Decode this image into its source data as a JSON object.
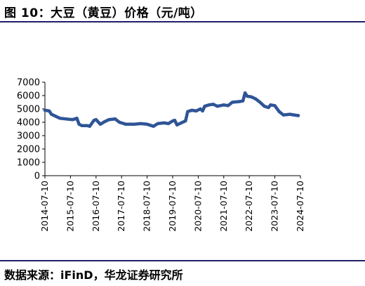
{
  "title": "图 10：大豆（黄豆）价格（元/吨）",
  "source": "数据来源：iFinD，华龙证券研究所",
  "colors": {
    "line": "#2f5597",
    "rule": "#1f1f6b",
    "axis": "#000000"
  },
  "chart_data": {
    "type": "line",
    "title": "",
    "xlabel": "",
    "ylabel": "",
    "ylim": [
      0,
      7000
    ],
    "yticks": [
      0,
      1000,
      2000,
      3000,
      4000,
      5000,
      6000,
      7000
    ],
    "xlim": [
      "2014-07-10",
      "2024-07-10"
    ],
    "xticks": [
      "2014-07-10",
      "2015-07-10",
      "2016-07-10",
      "2017-07-10",
      "2018-07-10",
      "2019-07-10",
      "2020-07-10",
      "2021-07-10",
      "2022-07-10",
      "2023-07-10",
      "2024-07-10"
    ],
    "grid": false,
    "legend": "none",
    "series": [
      {
        "points": [
          [
            "2014-07-10",
            4900
          ],
          [
            "2014-09-10",
            4850
          ],
          [
            "2014-10-10",
            4600
          ],
          [
            "2014-12-10",
            4450
          ],
          [
            "2015-02-10",
            4300
          ],
          [
            "2015-05-10",
            4250
          ],
          [
            "2015-08-10",
            4200
          ],
          [
            "2015-10-10",
            4300
          ],
          [
            "2015-11-10",
            3850
          ],
          [
            "2015-12-20",
            3750
          ],
          [
            "2016-03-10",
            3750
          ],
          [
            "2016-04-10",
            3700
          ],
          [
            "2016-06-10",
            4150
          ],
          [
            "2016-07-10",
            4200
          ],
          [
            "2016-09-10",
            3850
          ],
          [
            "2016-11-10",
            4050
          ],
          [
            "2017-01-10",
            4200
          ],
          [
            "2017-04-10",
            4250
          ],
          [
            "2017-06-10",
            4000
          ],
          [
            "2017-09-10",
            3850
          ],
          [
            "2018-01-10",
            3850
          ],
          [
            "2018-04-10",
            3900
          ],
          [
            "2018-07-10",
            3850
          ],
          [
            "2018-10-10",
            3700
          ],
          [
            "2018-12-10",
            3900
          ],
          [
            "2019-03-10",
            3950
          ],
          [
            "2019-05-10",
            3900
          ],
          [
            "2019-07-10",
            4100
          ],
          [
            "2019-08-10",
            4150
          ],
          [
            "2019-09-10",
            3800
          ],
          [
            "2019-11-10",
            3950
          ],
          [
            "2020-01-10",
            4100
          ],
          [
            "2020-02-10",
            4800
          ],
          [
            "2020-04-10",
            4900
          ],
          [
            "2020-06-10",
            4850
          ],
          [
            "2020-08-10",
            5000
          ],
          [
            "2020-09-10",
            4850
          ],
          [
            "2020-10-10",
            5200
          ],
          [
            "2020-12-10",
            5300
          ],
          [
            "2021-02-10",
            5350
          ],
          [
            "2021-04-10",
            5200
          ],
          [
            "2021-07-10",
            5300
          ],
          [
            "2021-09-10",
            5250
          ],
          [
            "2021-11-10",
            5500
          ],
          [
            "2022-02-10",
            5550
          ],
          [
            "2022-04-10",
            5600
          ],
          [
            "2022-05-10",
            6200
          ],
          [
            "2022-06-10",
            5950
          ],
          [
            "2022-08-10",
            5900
          ],
          [
            "2022-10-10",
            5750
          ],
          [
            "2022-12-10",
            5500
          ],
          [
            "2023-02-10",
            5200
          ],
          [
            "2023-04-10",
            5100
          ],
          [
            "2023-05-10",
            5300
          ],
          [
            "2023-07-10",
            5250
          ],
          [
            "2023-09-10",
            4800
          ],
          [
            "2023-11-10",
            4550
          ],
          [
            "2024-02-10",
            4600
          ],
          [
            "2024-04-10",
            4550
          ],
          [
            "2024-06-10",
            4500
          ]
        ]
      }
    ]
  }
}
